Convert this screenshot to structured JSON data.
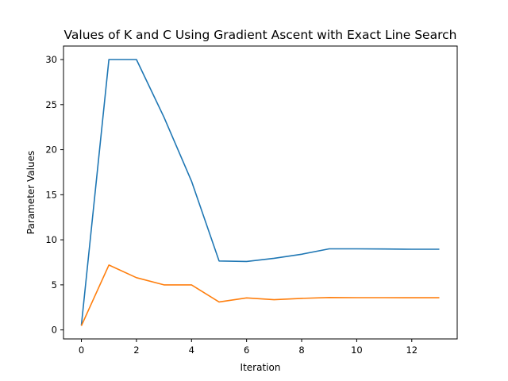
{
  "chart_data": {
    "type": "line",
    "title": "Values of K and C Using Gradient Ascent with Exact Line Search",
    "xlabel": "Iteration",
    "ylabel": "Parameter Values",
    "xlim": [
      -0.65,
      13.65
    ],
    "ylim": [
      -1.0,
      31.5
    ],
    "xticks": [
      0,
      2,
      4,
      6,
      8,
      10,
      12
    ],
    "yticks": [
      0,
      5,
      10,
      15,
      20,
      25,
      30
    ],
    "grid": false,
    "legend": "none",
    "x": [
      0,
      1,
      2,
      3,
      4,
      5,
      6,
      7,
      8,
      9,
      10,
      11,
      12,
      13
    ],
    "series": [
      {
        "color": "#1f77b4",
        "values": [
          0.5,
          30.0,
          30.0,
          23.6,
          16.5,
          7.65,
          7.6,
          7.95,
          8.4,
          9.0,
          9.0,
          8.98,
          8.95,
          8.95
        ]
      },
      {
        "color": "#ff7f0e",
        "values": [
          0.45,
          7.2,
          5.8,
          5.0,
          5.0,
          3.1,
          3.55,
          3.35,
          3.5,
          3.6,
          3.58,
          3.58,
          3.57,
          3.57
        ]
      }
    ]
  }
}
